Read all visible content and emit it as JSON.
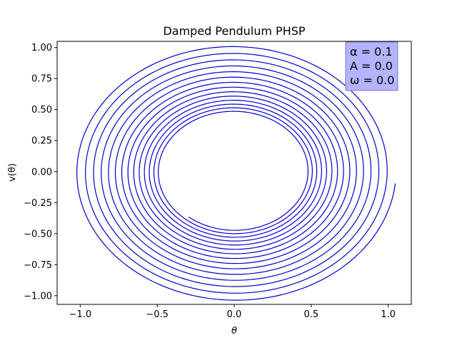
{
  "chart_data": {
    "type": "line",
    "title": "Damped Pendulum PHSP",
    "xlabel": "θ",
    "ylabel": "v(θ)",
    "xlim": [
      -1.15,
      1.15
    ],
    "ylim": [
      -1.07,
      1.05
    ],
    "x_ticks": [
      -1.0,
      -0.5,
      0.0,
      0.5,
      1.0
    ],
    "x_tick_labels": [
      "−1.0",
      "−0.5",
      "0.0",
      "0.5",
      "1.0"
    ],
    "y_ticks": [
      1.0,
      0.75,
      0.5,
      0.25,
      0.0,
      -0.25,
      -0.5,
      -0.75,
      -1.0
    ],
    "y_tick_labels": [
      "1.00",
      "0.75",
      "0.50",
      "0.25",
      "0.00",
      "−0.25",
      "−0.50",
      "−0.75",
      "−1.00"
    ],
    "grid": false,
    "annotation": {
      "lines": [
        "α = 0.1",
        "A = 0.0",
        "ω = 0.0"
      ],
      "placement": "top-right",
      "facecolor": "#b3b3ff",
      "edgecolor": "#7f7fbf"
    },
    "series": [
      {
        "color": "#0000cc",
        "start": [
          1.095,
          -0.1
        ],
        "end": [
          -0.29,
          -0.36
        ],
        "r_start": 1.05,
        "r_end": 0.47,
        "turns": 14.05
      }
    ]
  }
}
